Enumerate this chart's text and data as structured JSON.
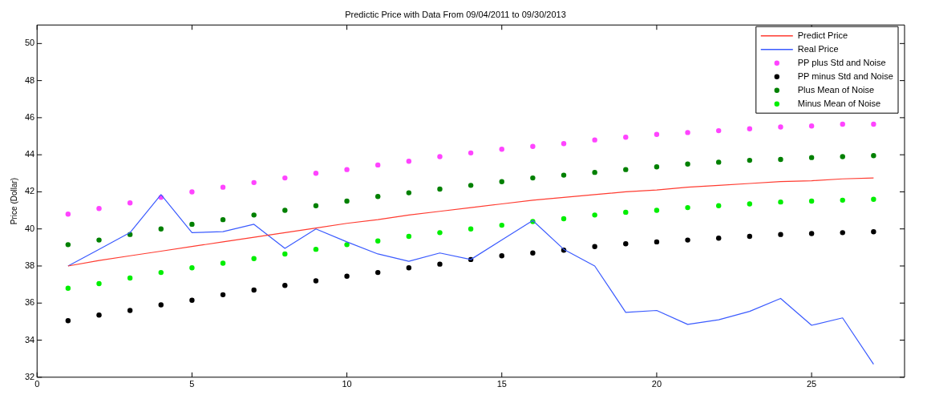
{
  "chart_data": {
    "type": "line",
    "title": "Predictic Price with Data From 09/04/2011 to 09/30/2013",
    "ylabel": "Price (Dollar)",
    "x": [
      1,
      2,
      3,
      4,
      5,
      6,
      7,
      8,
      9,
      10,
      11,
      12,
      13,
      14,
      15,
      16,
      17,
      18,
      19,
      20,
      21,
      22,
      23,
      24,
      25,
      26,
      27
    ],
    "xlim": [
      0,
      28
    ],
    "xticks": [
      0,
      5,
      10,
      15,
      20,
      25
    ],
    "ylim": [
      32,
      51
    ],
    "yticks": [
      32,
      34,
      36,
      38,
      40,
      42,
      44,
      46,
      48,
      50
    ],
    "grid": false,
    "legend": "top right",
    "series": [
      {
        "name": "Predict Price",
        "type": "line",
        "marker": "none",
        "color": "#ff3b30",
        "values": [
          38.0,
          38.3,
          38.55,
          38.8,
          39.05,
          39.3,
          39.55,
          39.8,
          40.05,
          40.3,
          40.5,
          40.75,
          40.95,
          41.15,
          41.35,
          41.55,
          41.7,
          41.85,
          42.0,
          42.1,
          42.25,
          42.35,
          42.45,
          42.55,
          42.6,
          42.7,
          42.75
        ]
      },
      {
        "name": "Real Price",
        "type": "line",
        "marker": "none",
        "color": "#3b5bff",
        "values": [
          38.0,
          38.9,
          39.8,
          41.85,
          39.8,
          39.85,
          40.25,
          38.95,
          40.0,
          39.3,
          38.65,
          38.25,
          38.7,
          38.35,
          39.4,
          40.45,
          38.9,
          38.0,
          35.5,
          35.6,
          34.85,
          35.1,
          35.55,
          36.25,
          34.8,
          35.2,
          32.7
        ]
      },
      {
        "name": "PP plus Std and Noise",
        "type": "scatter",
        "marker": "circle",
        "color": "#ff44ff",
        "values": [
          40.8,
          41.1,
          41.4,
          41.7,
          42.0,
          42.25,
          42.5,
          42.75,
          43.0,
          43.2,
          43.45,
          43.65,
          43.9,
          44.1,
          44.3,
          44.45,
          44.6,
          44.8,
          44.95,
          45.1,
          45.2,
          45.3,
          45.4,
          45.5,
          45.55,
          45.65,
          45.65
        ]
      },
      {
        "name": "PP minus Std and Noise",
        "type": "scatter",
        "marker": "circle",
        "color": "#000000",
        "values": [
          35.05,
          35.35,
          35.6,
          35.9,
          36.15,
          36.45,
          36.7,
          36.95,
          37.2,
          37.45,
          37.65,
          37.9,
          38.1,
          38.35,
          38.55,
          38.7,
          38.85,
          39.05,
          39.2,
          39.3,
          39.4,
          39.5,
          39.6,
          39.7,
          39.75,
          39.8,
          39.85
        ]
      },
      {
        "name": "Plus Mean of Noise",
        "type": "scatter",
        "marker": "circle",
        "color": "#008000",
        "values": [
          39.15,
          39.4,
          39.7,
          40.0,
          40.25,
          40.5,
          40.75,
          41.0,
          41.25,
          41.5,
          41.75,
          41.95,
          42.15,
          42.35,
          42.55,
          42.75,
          42.9,
          43.05,
          43.2,
          43.35,
          43.5,
          43.6,
          43.7,
          43.75,
          43.85,
          43.9,
          43.95
        ]
      },
      {
        "name": "Minus Mean of Noise",
        "type": "scatter",
        "marker": "circle",
        "color": "#00ee00",
        "values": [
          36.8,
          37.05,
          37.35,
          37.65,
          37.9,
          38.15,
          38.4,
          38.65,
          38.9,
          39.15,
          39.35,
          39.6,
          39.8,
          40.0,
          40.2,
          40.4,
          40.55,
          40.75,
          40.9,
          41.0,
          41.15,
          41.25,
          41.35,
          41.45,
          41.5,
          41.55,
          41.6
        ]
      }
    ]
  }
}
